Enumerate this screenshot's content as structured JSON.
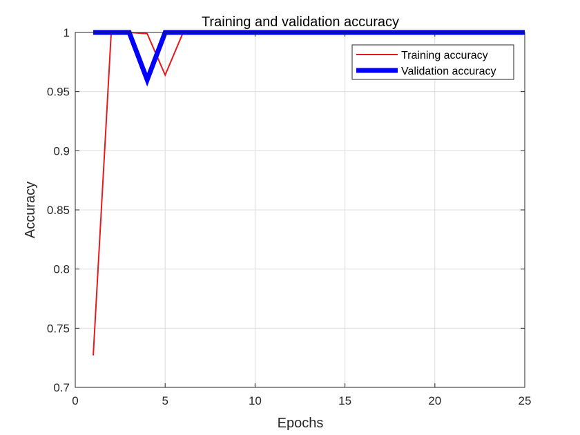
{
  "chart_data": {
    "type": "line",
    "title": "Training and validation accuracy",
    "xlabel": "Epochs",
    "ylabel": "Accuracy",
    "xlim": [
      0,
      25
    ],
    "ylim": [
      0.7,
      1
    ],
    "xticks": [
      "0",
      "5",
      "10",
      "15",
      "20",
      "25"
    ],
    "yticks": [
      "0.7",
      "0.75",
      "0.8",
      "0.85",
      "0.9",
      "0.95",
      "1"
    ],
    "grid": true,
    "legend_position": "top-right",
    "x": [
      1,
      2,
      3,
      4,
      5,
      6,
      7,
      8,
      9,
      10,
      11,
      12,
      13,
      14,
      15,
      16,
      17,
      18,
      19,
      20,
      21,
      22,
      23,
      24,
      25
    ],
    "series": [
      {
        "name": "Training accuracy",
        "color": "#e41a1c",
        "values": [
          0.727,
          1,
          1,
          0.999,
          0.964,
          1,
          1,
          1,
          1,
          1,
          1,
          1,
          1,
          1,
          1,
          1,
          1,
          1,
          1,
          1,
          1,
          1,
          1,
          1,
          1
        ]
      },
      {
        "name": "Validation accuracy",
        "color": "#0000ff",
        "values": [
          1,
          1,
          1,
          0.96,
          1,
          1,
          1,
          1,
          1,
          1,
          1,
          1,
          1,
          1,
          1,
          1,
          1,
          1,
          1,
          1,
          1,
          1,
          1,
          1,
          1
        ]
      }
    ]
  }
}
